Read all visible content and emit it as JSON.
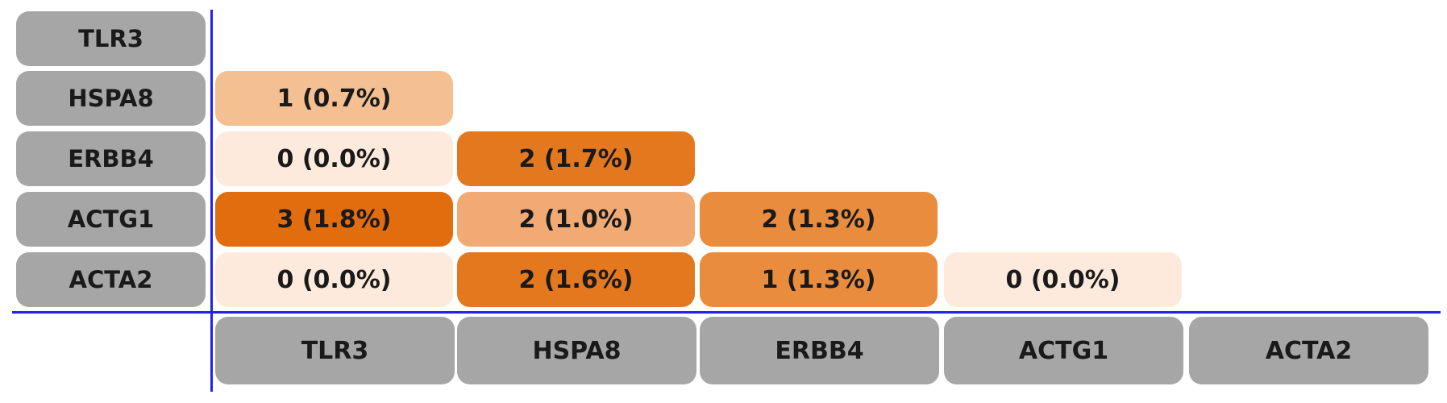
{
  "chart_data": {
    "type": "heatmap",
    "rows": [
      "TLR3",
      "HSPA8",
      "ERBB4",
      "ACTG1",
      "ACTA2"
    ],
    "columns": [
      "TLR3",
      "HSPA8",
      "ERBB4",
      "ACTG1",
      "ACTA2"
    ],
    "cells": [
      {
        "row": "HSPA8",
        "column": "TLR3",
        "count": 1,
        "percent": 0.7,
        "label": "1 (0.7%)",
        "color": "#f4bf91"
      },
      {
        "row": "ERBB4",
        "column": "TLR3",
        "count": 0,
        "percent": 0.0,
        "label": "0 (0.0%)",
        "color": "#fdeadd"
      },
      {
        "row": "ERBB4",
        "column": "HSPA8",
        "count": 2,
        "percent": 1.7,
        "label": "2 (1.7%)",
        "color": "#e4781f"
      },
      {
        "row": "ACTG1",
        "column": "TLR3",
        "count": 3,
        "percent": 1.8,
        "label": "3 (1.8%)",
        "color": "#e26d0f"
      },
      {
        "row": "ACTG1",
        "column": "HSPA8",
        "count": 2,
        "percent": 1.0,
        "label": "2 (1.0%)",
        "color": "#f1aa73"
      },
      {
        "row": "ACTG1",
        "column": "ERBB4",
        "count": 2,
        "percent": 1.3,
        "label": "2 (1.3%)",
        "color": "#e98c3e"
      },
      {
        "row": "ACTA2",
        "column": "TLR3",
        "count": 0,
        "percent": 0.0,
        "label": "0 (0.0%)",
        "color": "#fdeadd"
      },
      {
        "row": "ACTA2",
        "column": "HSPA8",
        "count": 2,
        "percent": 1.6,
        "label": "2 (1.6%)",
        "color": "#e4781f"
      },
      {
        "row": "ACTA2",
        "column": "ERBB4",
        "count": 1,
        "percent": 1.3,
        "label": "1 (1.3%)",
        "color": "#e98c3e"
      },
      {
        "row": "ACTA2",
        "column": "ACTG1",
        "count": 0,
        "percent": 0.0,
        "label": "0 (0.0%)",
        "color": "#fdeadd"
      }
    ],
    "colors": {
      "label_background": "#a6a6a6",
      "axis_line": "#2222ee"
    },
    "title": "",
    "legend": "none",
    "grid": false
  }
}
